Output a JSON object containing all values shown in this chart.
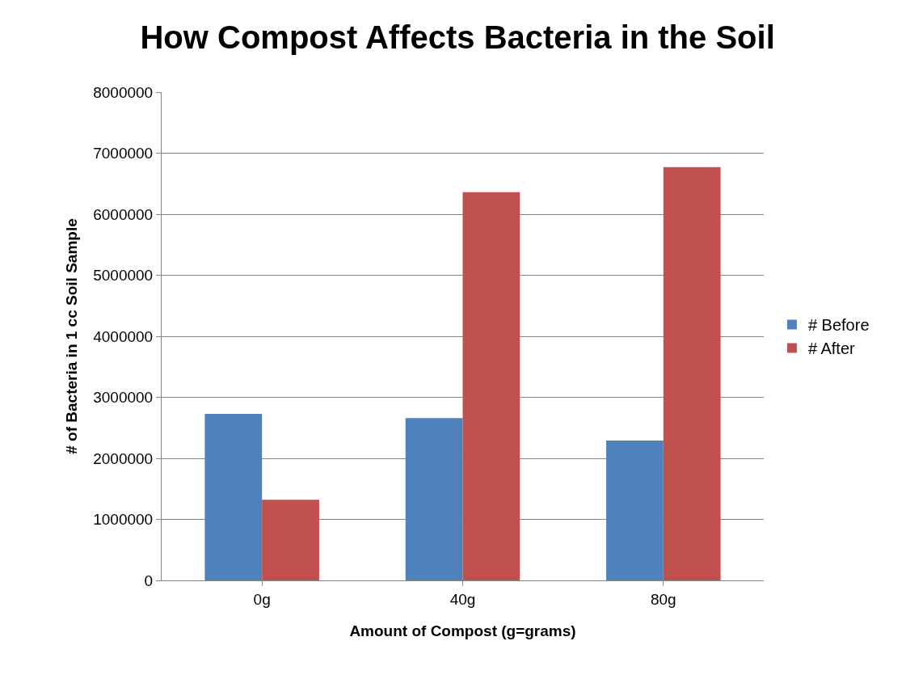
{
  "chart_data": {
    "type": "bar",
    "title": "How Compost Affects Bacteria in the Soil",
    "xlabel": "Amount of Compost (g=grams)",
    "ylabel": "# of Bacteria in 1 cc Soil Sample",
    "categories": [
      "0g",
      "40g",
      "80g"
    ],
    "series": [
      {
        "name": "# Before",
        "color": "#4f81bd",
        "values": [
          2730000,
          2660000,
          2290000
        ]
      },
      {
        "name": "# After",
        "color": "#c0504d",
        "values": [
          1320000,
          6360000,
          6770000
        ]
      }
    ],
    "ylim": [
      0,
      8000000
    ],
    "yticks": [
      0,
      1000000,
      2000000,
      3000000,
      4000000,
      5000000,
      6000000,
      7000000,
      8000000
    ],
    "grid": "y",
    "legend": "right"
  }
}
